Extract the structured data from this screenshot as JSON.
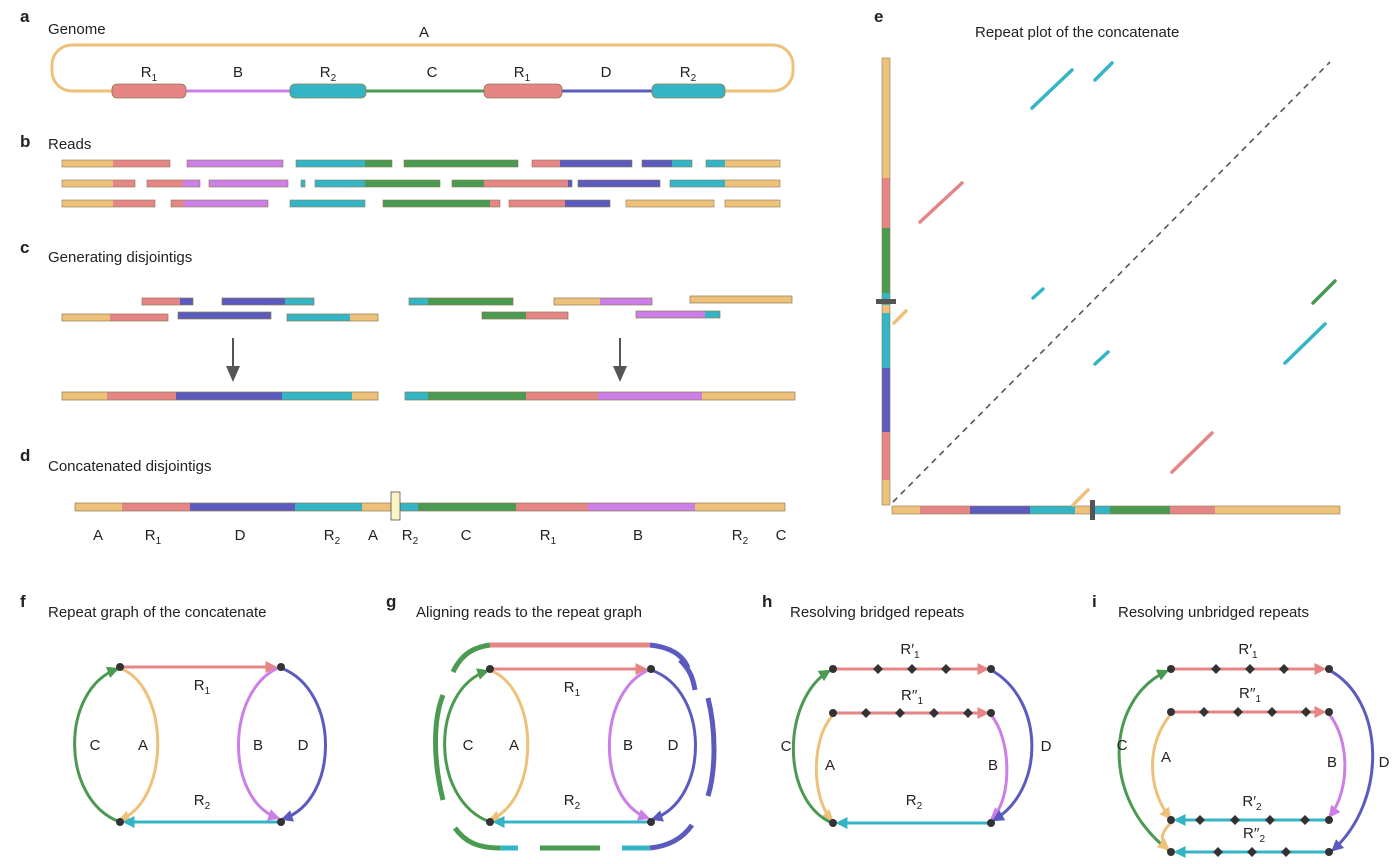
{
  "colors": {
    "A": "#eec17a",
    "R1": "#e58585",
    "B": "#cc7fe6",
    "R2": "#34b5c6",
    "C": "#4b9a52",
    "D": "#5b5bbf",
    "outline": "#8a7a55",
    "node": "#333333",
    "gap": "#fbf4c4"
  },
  "panels": {
    "a": {
      "label": "a",
      "title": "Genome",
      "top_label": "A"
    },
    "b": {
      "label": "b",
      "title": "Reads"
    },
    "c": {
      "label": "c",
      "title": "Generating disjointigs"
    },
    "d": {
      "label": "d",
      "title": "Concatenated disjointigs"
    },
    "e": {
      "label": "e",
      "title": "Repeat plot of the concatenate"
    },
    "f": {
      "label": "f",
      "title": "Repeat graph of the concatenate"
    },
    "g": {
      "label": "g",
      "title": "Aligning reads to the repeat graph"
    },
    "h": {
      "label": "h",
      "title": "Resolving bridged repeats"
    },
    "i": {
      "label": "i",
      "title": "Resolving unbridged repeats"
    }
  },
  "genome_labels": [
    {
      "text": "R",
      "sub": "1"
    },
    {
      "text": "B",
      "sub": ""
    },
    {
      "text": "R",
      "sub": "2"
    },
    {
      "text": "C",
      "sub": ""
    },
    {
      "text": "R",
      "sub": "1"
    },
    {
      "text": "D",
      "sub": ""
    },
    {
      "text": "R",
      "sub": "2"
    }
  ],
  "concat_labels": [
    {
      "text": "A",
      "sub": ""
    },
    {
      "text": "R",
      "sub": "1"
    },
    {
      "text": "D",
      "sub": ""
    },
    {
      "text": "R",
      "sub": "2"
    },
    {
      "text": "A",
      "sub": ""
    },
    {
      "text": "R",
      "sub": "2"
    },
    {
      "text": "C",
      "sub": ""
    },
    {
      "text": "R",
      "sub": "1"
    },
    {
      "text": "B",
      "sub": ""
    },
    {
      "text": "R",
      "sub": "2"
    },
    {
      "text": "C",
      "sub": ""
    }
  ],
  "graph_labels": {
    "R1": {
      "text": "R",
      "sub": "1"
    },
    "R2": {
      "text": "R",
      "sub": "2"
    },
    "A": "A",
    "B": "B",
    "C": "C",
    "D": "D",
    "R1p": {
      "text": "R′",
      "sub": "1"
    },
    "R1pp": {
      "text": "R′′",
      "sub": "1"
    },
    "R2p": {
      "text": "R′",
      "sub": "2"
    },
    "R2pp": {
      "text": "R′′",
      "sub": "2"
    }
  }
}
